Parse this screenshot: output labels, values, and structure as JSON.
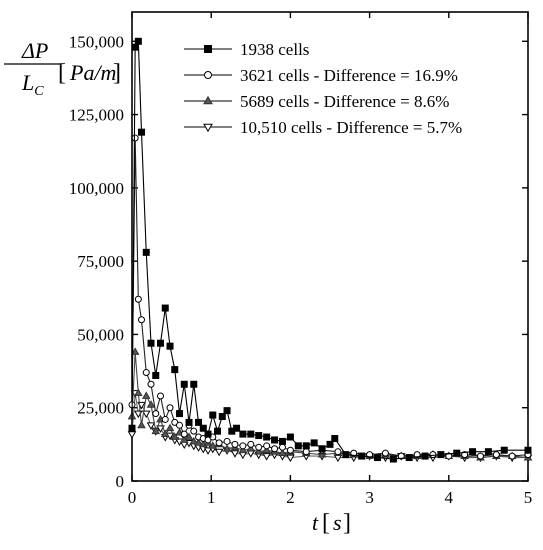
{
  "chart_data": {
    "type": "line",
    "ylabel": {
      "numerator": "ΔP",
      "denominator": "L",
      "denominator_sub": "C",
      "unit_open": "[",
      "unit": "Pa/m",
      "unit_close": "]"
    },
    "xlabel": {
      "symbol": "t",
      "unit_open": "[",
      "unit": "s",
      "unit_close": "]"
    },
    "xlim": [
      0,
      5
    ],
    "ylim": [
      0,
      160000
    ],
    "x_ticks": [
      0,
      1,
      2,
      3,
      4,
      5
    ],
    "x_tick_labels": [
      "0",
      "1",
      "2",
      "3",
      "4",
      "5"
    ],
    "y_ticks": [
      0,
      25000,
      50000,
      75000,
      100000,
      125000,
      150000
    ],
    "y_tick_labels": [
      "0",
      "25,000",
      "50,000",
      "75,000",
      "100,000",
      "125,000",
      "150,000"
    ],
    "legend_position": "top-right",
    "grid": false,
    "series": [
      {
        "name": "1938 cells",
        "marker": "square-filled",
        "x": [
          0.0,
          0.04,
          0.08,
          0.12,
          0.18,
          0.24,
          0.3,
          0.36,
          0.42,
          0.48,
          0.54,
          0.6,
          0.66,
          0.72,
          0.78,
          0.84,
          0.9,
          0.96,
          1.02,
          1.08,
          1.14,
          1.2,
          1.26,
          1.32,
          1.4,
          1.5,
          1.6,
          1.7,
          1.8,
          1.9,
          2.0,
          2.1,
          2.2,
          2.3,
          2.4,
          2.5,
          2.56,
          2.7,
          2.9,
          3.1,
          3.3,
          3.5,
          3.7,
          3.9,
          4.1,
          4.3,
          4.5,
          4.7,
          5.0
        ],
        "y": [
          18000,
          148000,
          150000,
          119000,
          78000,
          47000,
          36000,
          47000,
          59000,
          46000,
          38000,
          23000,
          33000,
          20000,
          33000,
          20000,
          18000,
          16000,
          22500,
          17000,
          22000,
          24000,
          17000,
          18000,
          16000,
          16000,
          15500,
          15000,
          14000,
          13500,
          15000,
          12000,
          12000,
          13000,
          11000,
          12500,
          14500,
          9000,
          8500,
          8000,
          7500,
          8000,
          8500,
          9000,
          9500,
          10000,
          10000,
          10500,
          10500
        ]
      },
      {
        "name": "3621 cells - Difference = 16.9%",
        "marker": "circle-open",
        "x": [
          0.0,
          0.04,
          0.08,
          0.12,
          0.18,
          0.24,
          0.3,
          0.36,
          0.42,
          0.48,
          0.54,
          0.6,
          0.66,
          0.72,
          0.78,
          0.84,
          0.9,
          0.96,
          1.02,
          1.1,
          1.2,
          1.3,
          1.4,
          1.5,
          1.6,
          1.7,
          1.8,
          1.9,
          2.0,
          2.2,
          2.4,
          2.6,
          2.8,
          3.0,
          3.2,
          3.4,
          3.6,
          3.8,
          4.0,
          4.2,
          4.4,
          4.6,
          4.8,
          5.0
        ],
        "y": [
          26000,
          117000,
          62000,
          55000,
          37000,
          33000,
          23000,
          29000,
          21000,
          25000,
          20000,
          19000,
          16000,
          19000,
          17000,
          15000,
          14500,
          14000,
          15000,
          13000,
          13500,
          12500,
          12000,
          12500,
          11500,
          12000,
          11000,
          11500,
          10500,
          10000,
          10500,
          10000,
          9500,
          9000,
          9500,
          8500,
          9000,
          9000,
          8500,
          9000,
          8500,
          9000,
          8500,
          9000
        ]
      },
      {
        "name": "5689 cells - Difference = 8.6%",
        "marker": "triangle-up-filled",
        "x": [
          0.0,
          0.04,
          0.08,
          0.12,
          0.18,
          0.24,
          0.3,
          0.36,
          0.42,
          0.48,
          0.54,
          0.6,
          0.66,
          0.72,
          0.78,
          0.84,
          0.9,
          0.96,
          1.02,
          1.1,
          1.2,
          1.3,
          1.4,
          1.5,
          1.6,
          1.7,
          1.8,
          1.9,
          2.0,
          2.2,
          2.4,
          2.6,
          2.8,
          3.0,
          3.2,
          3.4,
          3.6,
          3.8,
          4.0,
          4.2,
          4.4,
          4.6,
          4.8,
          5.0
        ],
        "y": [
          22000,
          44000,
          30000,
          19000,
          29000,
          26000,
          17000,
          21000,
          16000,
          18000,
          15000,
          16500,
          14000,
          15000,
          13500,
          13000,
          12500,
          13000,
          12000,
          12500,
          11000,
          11500,
          10500,
          11000,
          10000,
          10500,
          10000,
          9500,
          10000,
          9500,
          9000,
          9500,
          9000,
          8500,
          9000,
          8500,
          8500,
          9000,
          8500,
          8500,
          8000,
          8500,
          8500,
          8000
        ]
      },
      {
        "name": "10,510 cells - Difference = 5.7%",
        "marker": "triangle-down-open",
        "x": [
          0.0,
          0.04,
          0.08,
          0.12,
          0.18,
          0.24,
          0.3,
          0.36,
          0.42,
          0.48,
          0.54,
          0.6,
          0.66,
          0.72,
          0.78,
          0.84,
          0.9,
          0.96,
          1.02,
          1.1,
          1.2,
          1.3,
          1.4,
          1.5,
          1.6,
          1.7,
          1.8,
          1.9,
          2.0,
          2.2,
          2.4,
          2.6,
          2.8,
          3.0,
          3.2,
          3.4,
          3.6,
          3.8,
          4.0,
          4.2,
          4.4,
          4.6,
          4.8,
          5.0
        ],
        "y": [
          16000,
          30000,
          23000,
          26000,
          23000,
          19000,
          17000,
          18000,
          15000,
          15500,
          14000,
          13500,
          12500,
          13000,
          12000,
          11500,
          11000,
          10500,
          11000,
          10000,
          10500,
          9500,
          9000,
          9500,
          9000,
          8500,
          9000,
          8500,
          8000,
          8500,
          8500,
          8000,
          8000,
          8500,
          8000,
          8500,
          8000,
          8000,
          8500,
          8000,
          8000,
          8500,
          8000,
          8000
        ]
      }
    ]
  }
}
